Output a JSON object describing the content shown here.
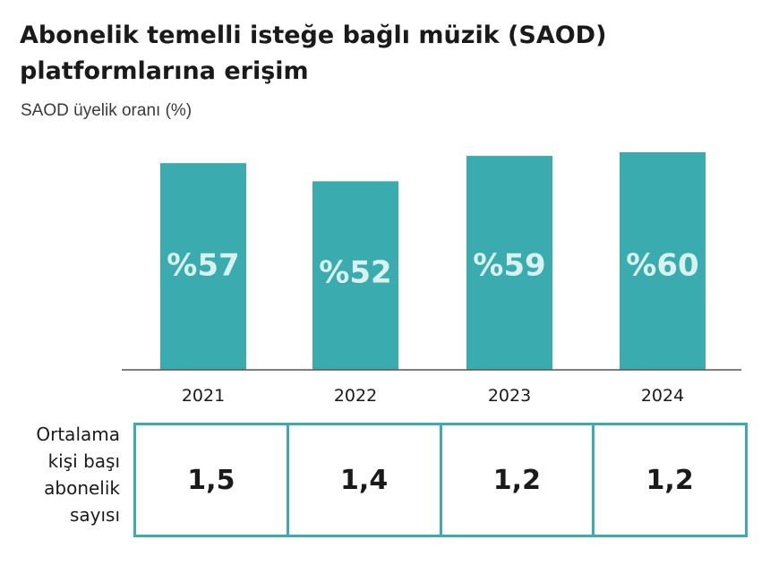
{
  "title": "Abonelik temelli isteğe bağlı müzik (SAOD) platformlarına erişim",
  "subtitle": "SAOD üyelik oranı (%)",
  "colors": {
    "bar": "#3aacaf",
    "bar_label": "#d9f2f0",
    "axis": "#555555"
  },
  "chart_data": {
    "type": "bar",
    "title": "Abonelik temelli isteğe bağlı müzik (SAOD) platformlarına erişim",
    "ylabel": "SAOD üyelik oranı (%)",
    "xlabel": "",
    "categories": [
      "2021",
      "2022",
      "2023",
      "2024"
    ],
    "values": [
      57,
      52,
      59,
      60
    ],
    "value_labels": [
      "%57",
      "%52",
      "%59",
      "%60"
    ],
    "ylim": [
      0,
      60
    ],
    "grid": false,
    "legend": "none"
  },
  "table": {
    "row_label_lines": [
      "Ortalama",
      "kişi başı",
      "abonelik",
      "sayısı"
    ],
    "values": [
      "1,5",
      "1,4",
      "1,2",
      "1,2"
    ]
  }
}
